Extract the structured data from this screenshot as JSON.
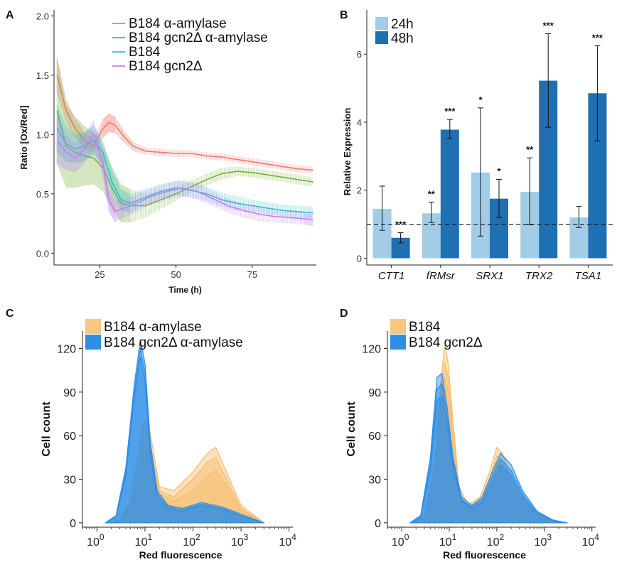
{
  "panels": {
    "a": {
      "letter": "A"
    },
    "b": {
      "letter": "B"
    },
    "c": {
      "letter": "C"
    },
    "d": {
      "letter": "D"
    }
  },
  "colors": {
    "red": "#f07a73",
    "green": "#77b23a",
    "cyan": "#2fc0c6",
    "purple": "#c181f3",
    "light_blue": "#a3cde6",
    "dark_blue": "#1f6fb3",
    "orange": "#f7bd6a",
    "blue": "#2f8ee6"
  },
  "chart_data": [
    {
      "id": "A",
      "type": "line",
      "xlabel": "Time (h)",
      "ylabel": "Ratio [Ox/Red]",
      "xlim": [
        10,
        96
      ],
      "ylim": [
        -0.1,
        2.05
      ],
      "xticks": [
        25,
        50,
        75
      ],
      "yticks": [
        0.0,
        0.5,
        1.0,
        1.5,
        2.0
      ],
      "ytick_labels": [
        "0.0",
        "0.5",
        "1.0",
        "1.5",
        "2.0"
      ],
      "legend_position": "top-right",
      "series": [
        {
          "name": "B184 α-amylase",
          "color": "#f07a73",
          "x": [
            11,
            14,
            17,
            20,
            23,
            26,
            28,
            30,
            33,
            36,
            40,
            45,
            50,
            55,
            60,
            65,
            70,
            75,
            80,
            85,
            90,
            95
          ],
          "y": [
            1.5,
            1.2,
            1.05,
            0.95,
            0.9,
            1.05,
            1.1,
            1.08,
            0.98,
            0.9,
            0.86,
            0.85,
            0.84,
            0.84,
            0.82,
            0.81,
            0.79,
            0.77,
            0.75,
            0.73,
            0.71,
            0.7
          ],
          "err": [
            0.15,
            0.1,
            0.08,
            0.07,
            0.06,
            0.08,
            0.08,
            0.07,
            0.05,
            0.04,
            0.03,
            0.03,
            0.03,
            0.03,
            0.03,
            0.03,
            0.03,
            0.03,
            0.03,
            0.03,
            0.03,
            0.03
          ]
        },
        {
          "name": "B184 gcn2Δ α-amylase",
          "color": "#77b23a",
          "x": [
            11,
            14,
            17,
            20,
            23,
            26,
            29,
            32,
            35,
            40,
            45,
            50,
            55,
            60,
            65,
            70,
            75,
            80,
            85,
            90,
            95
          ],
          "y": [
            1.2,
            0.9,
            0.85,
            0.82,
            0.8,
            0.72,
            0.55,
            0.42,
            0.4,
            0.4,
            0.45,
            0.5,
            0.56,
            0.62,
            0.67,
            0.69,
            0.68,
            0.66,
            0.64,
            0.62,
            0.6
          ],
          "err": [
            0.45,
            0.35,
            0.3,
            0.25,
            0.22,
            0.2,
            0.18,
            0.16,
            0.14,
            0.1,
            0.08,
            0.06,
            0.05,
            0.05,
            0.05,
            0.04,
            0.04,
            0.04,
            0.04,
            0.04,
            0.04
          ]
        },
        {
          "name": "B184",
          "color": "#2fc0c6",
          "x": [
            11,
            14,
            17,
            20,
            23,
            26,
            29,
            32,
            35,
            40,
            45,
            50,
            55,
            60,
            65,
            70,
            75,
            80,
            85,
            90,
            95
          ],
          "y": [
            1.05,
            0.92,
            0.88,
            0.9,
            0.95,
            0.85,
            0.6,
            0.45,
            0.42,
            0.47,
            0.52,
            0.55,
            0.53,
            0.5,
            0.45,
            0.42,
            0.4,
            0.38,
            0.36,
            0.35,
            0.34
          ],
          "err": [
            0.2,
            0.15,
            0.12,
            0.12,
            0.12,
            0.1,
            0.1,
            0.09,
            0.08,
            0.07,
            0.06,
            0.06,
            0.06,
            0.06,
            0.06,
            0.06,
            0.05,
            0.05,
            0.05,
            0.05,
            0.05
          ]
        },
        {
          "name": "B184 gcn2Δ",
          "color": "#c181f3",
          "x": [
            11,
            14,
            17,
            20,
            23,
            26,
            28,
            30,
            33,
            37,
            42,
            47,
            52,
            57,
            62,
            67,
            72,
            77,
            82,
            87,
            92,
            95
          ],
          "y": [
            0.95,
            0.85,
            0.8,
            0.88,
            1.0,
            0.75,
            0.45,
            0.35,
            0.38,
            0.42,
            0.48,
            0.52,
            0.55,
            0.52,
            0.46,
            0.4,
            0.36,
            0.33,
            0.31,
            0.3,
            0.29,
            0.28
          ],
          "err": [
            0.2,
            0.15,
            0.12,
            0.12,
            0.12,
            0.1,
            0.1,
            0.09,
            0.08,
            0.07,
            0.07,
            0.07,
            0.07,
            0.07,
            0.06,
            0.06,
            0.06,
            0.06,
            0.05,
            0.05,
            0.05,
            0.05
          ]
        }
      ]
    },
    {
      "id": "B",
      "type": "bar",
      "ylabel": "Relative Expression",
      "ylim": [
        -0.2,
        7.3
      ],
      "yticks": [
        0,
        2,
        4,
        6
      ],
      "ytick_labels": [
        "0",
        "2",
        "4",
        "6"
      ],
      "reference_line": 1,
      "legend_position": "top-left",
      "categories": [
        "CTT1",
        "fRMsr",
        "SRX1",
        "TRX2",
        "TSA1"
      ],
      "series": [
        {
          "name": "24h",
          "color": "#a3cde6",
          "values": [
            1.45,
            1.32,
            2.52,
            1.95,
            1.2
          ],
          "err_low": [
            0.82,
            1.05,
            0.65,
            0.98,
            0.9
          ],
          "err_high": [
            2.12,
            1.65,
            4.42,
            2.95,
            1.52
          ],
          "sig": [
            "",
            "**",
            "*",
            "**",
            ""
          ]
        },
        {
          "name": "48h",
          "color": "#1f6fb3",
          "values": [
            0.6,
            3.78,
            1.75,
            5.22,
            4.85
          ],
          "err_low": [
            0.45,
            3.52,
            1.2,
            3.85,
            3.45
          ],
          "err_high": [
            0.75,
            4.08,
            2.32,
            6.6,
            6.25
          ],
          "sig": [
            "***",
            "***",
            "*",
            "***",
            "***"
          ]
        }
      ]
    },
    {
      "id": "C",
      "type": "area",
      "xlabel": "Red fluorescence",
      "ylabel": "Cell count",
      "xscale": "log",
      "xlim": [
        0.5,
        12000
      ],
      "ylim": [
        -3,
        132
      ],
      "xticks": [
        1,
        10,
        100,
        1000,
        10000
      ],
      "xtick_labels": [
        {
          "base": "10",
          "exp": "0"
        },
        {
          "base": "10",
          "exp": "1"
        },
        {
          "base": "10",
          "exp": "2"
        },
        {
          "base": "10",
          "exp": "3"
        },
        {
          "base": "10",
          "exp": "4"
        }
      ],
      "yticks": [
        0,
        30,
        60,
        90,
        120
      ],
      "ytick_labels": [
        "0",
        "30",
        "60",
        "90",
        "120"
      ],
      "legend_position": "top-left",
      "series": [
        {
          "name": "B184 α-amylase",
          "color": "#f7bd6a",
          "replicates": [
            {
              "x": [
                1.5,
                3,
                5,
                7,
                9,
                11,
                14,
                20,
                40,
                100,
                200,
                300,
                500,
                1000,
                3000
              ],
              "y": [
                0,
                2,
                15,
                45,
                68,
                72,
                55,
                25,
                22,
                35,
                48,
                52,
                35,
                12,
                0
              ]
            },
            {
              "x": [
                1.5,
                3,
                5,
                7,
                9,
                11,
                14,
                20,
                40,
                100,
                200,
                300,
                500,
                1000,
                3000
              ],
              "y": [
                0,
                2,
                12,
                38,
                60,
                64,
                48,
                22,
                18,
                30,
                42,
                45,
                30,
                10,
                0
              ]
            },
            {
              "x": [
                1.5,
                3,
                5,
                7,
                9,
                11,
                14,
                20,
                40,
                100,
                200,
                300,
                500,
                1000,
                3000
              ],
              "y": [
                0,
                2,
                10,
                30,
                50,
                54,
                40,
                20,
                15,
                22,
                32,
                36,
                26,
                9,
                0
              ]
            }
          ]
        },
        {
          "name": "B184 gcn2Δ α-amylase",
          "color": "#2f8ee6",
          "replicates": [
            {
              "x": [
                1.5,
                2.5,
                4,
                6,
                8,
                10,
                13,
                18,
                30,
                60,
                150,
                400,
                1200,
                3000
              ],
              "y": [
                0,
                5,
                38,
                95,
                126,
                110,
                55,
                22,
                12,
                10,
                14,
                11,
                5,
                0
              ]
            },
            {
              "x": [
                1.5,
                2.5,
                4,
                6,
                8,
                10,
                13,
                18,
                30,
                60,
                150,
                400,
                1200,
                3000
              ],
              "y": [
                0,
                4,
                35,
                90,
                120,
                104,
                50,
                20,
                11,
                9,
                13,
                10,
                4,
                0
              ]
            },
            {
              "x": [
                1.5,
                2.5,
                4,
                6,
                8,
                10,
                13,
                18,
                30,
                60,
                150,
                400,
                1200,
                3000
              ],
              "y": [
                0,
                4,
                32,
                86,
                114,
                98,
                46,
                18,
                10,
                8,
                12,
                9,
                4,
                0
              ]
            }
          ]
        }
      ]
    },
    {
      "id": "D",
      "type": "area",
      "xlabel": "Red fluorescence",
      "ylabel": "Cell count",
      "xscale": "log",
      "xlim": [
        0.5,
        12000
      ],
      "ylim": [
        -3,
        132
      ],
      "xticks": [
        1,
        10,
        100,
        1000,
        10000
      ],
      "xtick_labels": [
        {
          "base": "10",
          "exp": "0"
        },
        {
          "base": "10",
          "exp": "1"
        },
        {
          "base": "10",
          "exp": "2"
        },
        {
          "base": "10",
          "exp": "3"
        },
        {
          "base": "10",
          "exp": "4"
        }
      ],
      "yticks": [
        0,
        30,
        60,
        90,
        120
      ],
      "ytick_labels": [
        "0",
        "30",
        "60",
        "90",
        "120"
      ],
      "legend_position": "top-left",
      "series": [
        {
          "name": "B184",
          "color": "#f7bd6a",
          "replicates": [
            {
              "x": [
                1.5,
                3,
                5,
                6.5,
                8,
                9.5,
                12,
                16,
                25,
                45,
                70,
                100,
                130,
                200,
                400,
                1000,
                3000
              ],
              "y": [
                0,
                4,
                40,
                95,
                122,
                110,
                70,
                25,
                12,
                18,
                35,
                52,
                48,
                30,
                14,
                3,
                0
              ]
            },
            {
              "x": [
                1.5,
                3,
                5,
                6.5,
                8,
                9.5,
                12,
                16,
                25,
                45,
                70,
                100,
                130,
                200,
                400,
                1000,
                3000
              ],
              "y": [
                0,
                4,
                36,
                85,
                110,
                100,
                62,
                22,
                11,
                16,
                30,
                46,
                42,
                26,
                12,
                3,
                0
              ]
            },
            {
              "x": [
                1.5,
                3,
                5,
                6.5,
                8,
                9.5,
                12,
                16,
                25,
                45,
                70,
                100,
                130,
                200,
                400,
                1000,
                3000
              ],
              "y": [
                0,
                3,
                32,
                78,
                100,
                90,
                56,
                20,
                10,
                14,
                27,
                40,
                36,
                22,
                10,
                2,
                0
              ]
            }
          ]
        },
        {
          "name": "B184 gcn2Δ",
          "color": "#2f8ee6",
          "replicates": [
            {
              "x": [
                1.5,
                2.5,
                4,
                5.5,
                7,
                9,
                12,
                18,
                30,
                50,
                80,
                120,
                200,
                350,
                700,
                1500,
                3000
              ],
              "y": [
                0,
                5,
                45,
                100,
                103,
                80,
                45,
                18,
                12,
                18,
                35,
                48,
                40,
                22,
                8,
                2,
                0
              ]
            },
            {
              "x": [
                1.5,
                2.5,
                4,
                5.5,
                7,
                9,
                12,
                18,
                30,
                50,
                80,
                120,
                200,
                350,
                700,
                1500,
                3000
              ],
              "y": [
                0,
                5,
                40,
                92,
                96,
                74,
                42,
                16,
                11,
                16,
                32,
                44,
                36,
                20,
                7,
                2,
                0
              ]
            },
            {
              "x": [
                1.5,
                2.5,
                4,
                5.5,
                7,
                9,
                12,
                18,
                30,
                50,
                80,
                120,
                200,
                350,
                700,
                1500,
                3000
              ],
              "y": [
                0,
                4,
                36,
                84,
                88,
                68,
                38,
                15,
                10,
                14,
                28,
                40,
                33,
                18,
                6,
                2,
                0
              ]
            }
          ]
        }
      ]
    }
  ]
}
